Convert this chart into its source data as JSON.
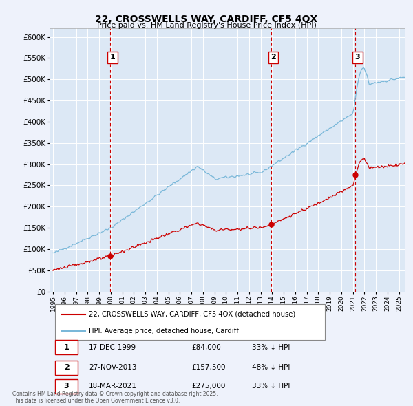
{
  "title": "22, CROSSWELLS WAY, CARDIFF, CF5 4QX",
  "subtitle": "Price paid vs. HM Land Registry's House Price Index (HPI)",
  "background_color": "#eef2fb",
  "plot_bg_color": "#dce8f5",
  "grid_color": "#ffffff",
  "ylim": [
    0,
    620000
  ],
  "yticks": [
    0,
    50000,
    100000,
    150000,
    200000,
    250000,
    300000,
    350000,
    400000,
    450000,
    500000,
    550000,
    600000
  ],
  "ytick_labels": [
    "£0",
    "£50K",
    "£100K",
    "£150K",
    "£200K",
    "£250K",
    "£300K",
    "£350K",
    "£400K",
    "£450K",
    "£500K",
    "£550K",
    "£600K"
  ],
  "xlim_start": 1994.7,
  "xlim_end": 2025.5,
  "xtick_years": [
    1995,
    1996,
    1997,
    1998,
    1999,
    2000,
    2001,
    2002,
    2003,
    2004,
    2005,
    2006,
    2007,
    2008,
    2009,
    2010,
    2011,
    2012,
    2013,
    2014,
    2015,
    2016,
    2017,
    2018,
    2019,
    2020,
    2021,
    2022,
    2023,
    2024,
    2025
  ],
  "sale_dates_decimal": [
    1999.96,
    2013.91,
    2021.21
  ],
  "sale_prices": [
    84000,
    157500,
    275000
  ],
  "sale_labels": [
    "1",
    "2",
    "3"
  ],
  "hpi_color": "#7ab8d9",
  "price_color": "#cc0000",
  "vline_color": "#cc0000",
  "legend_entries": [
    "22, CROSSWELLS WAY, CARDIFF, CF5 4QX (detached house)",
    "HPI: Average price, detached house, Cardiff"
  ],
  "table_rows": [
    {
      "label": "1",
      "date": "17-DEC-1999",
      "price": "£84,000",
      "pct": "33% ↓ HPI"
    },
    {
      "label": "2",
      "date": "27-NOV-2013",
      "price": "£157,500",
      "pct": "48% ↓ HPI"
    },
    {
      "label": "3",
      "date": "18-MAR-2021",
      "price": "£275,000",
      "pct": "33% ↓ HPI"
    }
  ],
  "footnote": "Contains HM Land Registry data © Crown copyright and database right 2025.\nThis data is licensed under the Open Government Licence v3.0."
}
